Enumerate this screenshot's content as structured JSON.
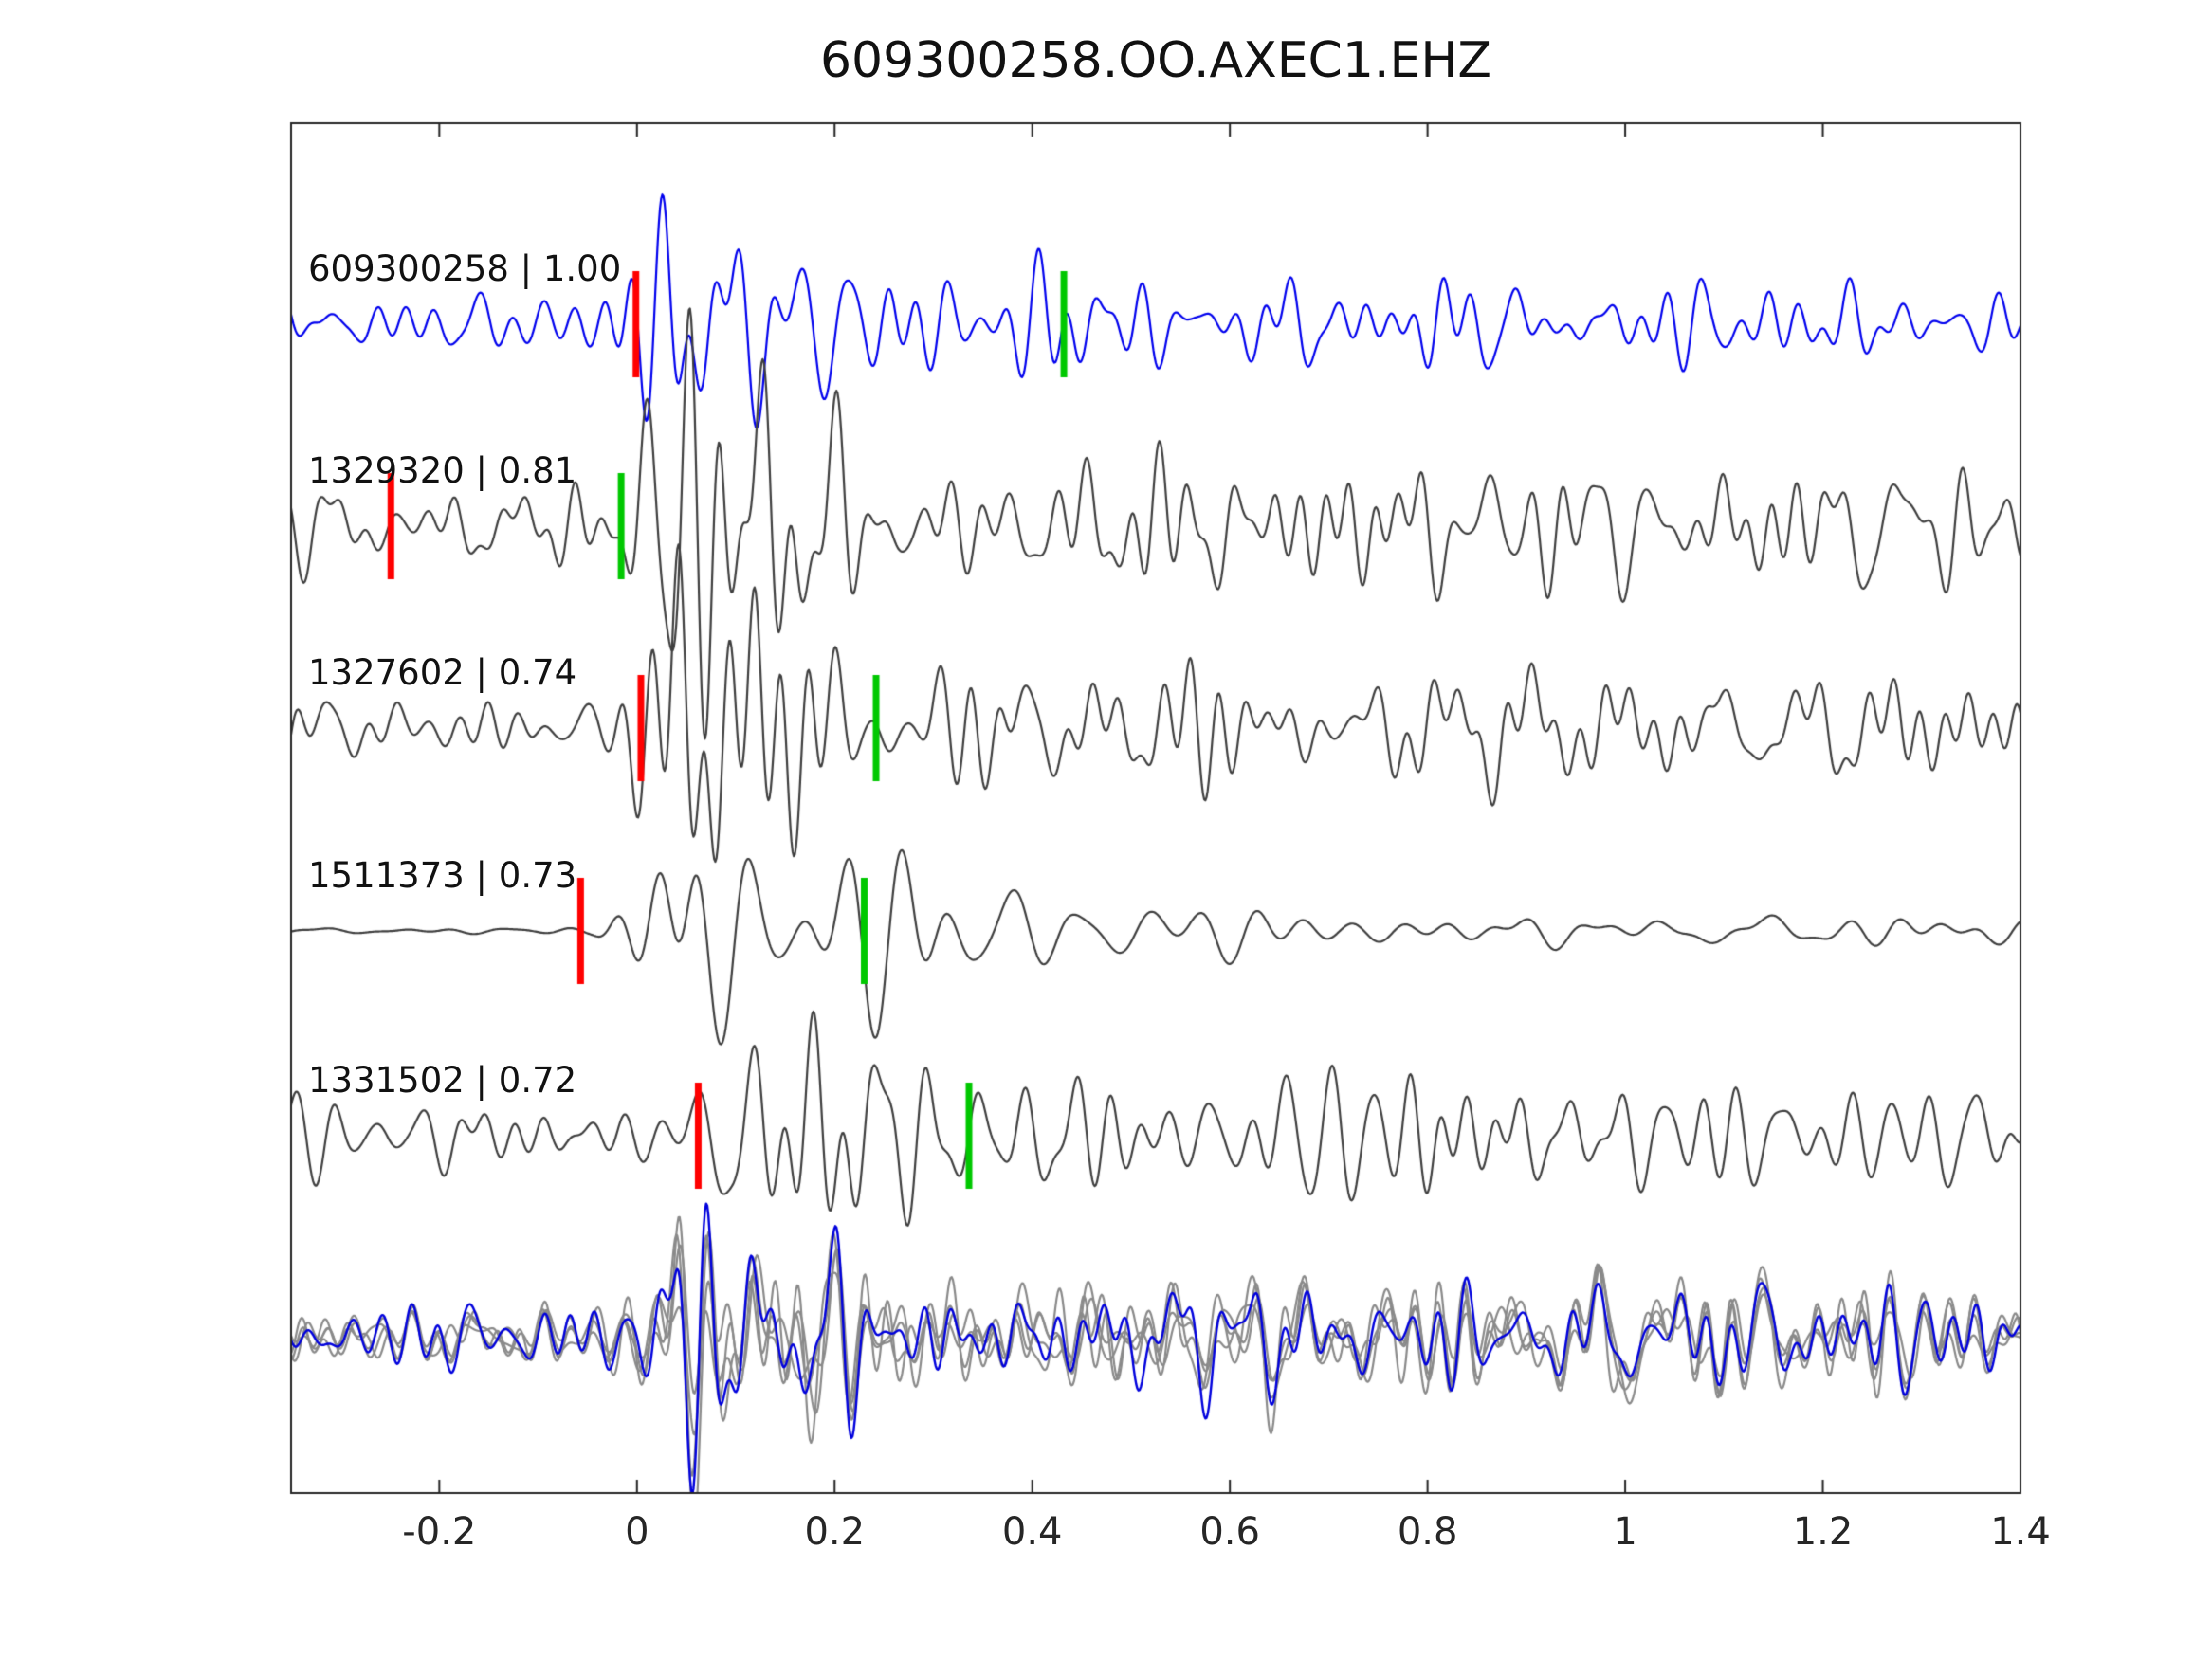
{
  "title": "609300258.OO.AXEC1.EHZ",
  "chart_data": {
    "type": "line",
    "title": "609300258.OO.AXEC1.EHZ",
    "xlabel": "",
    "ylabel": "",
    "xlim": [
      -0.35,
      1.4
    ],
    "xticks": [
      -0.2,
      0,
      0.2,
      0.4,
      0.6,
      0.8,
      1,
      1.2,
      1.4
    ],
    "xtick_labels": [
      "-0.2",
      "0",
      "0.2",
      "0.4",
      "0.6",
      "0.8",
      "1",
      "1.2",
      "1.4"
    ],
    "grid": false,
    "legend": "none",
    "description": "Stacked seismogram traces: template event (blue) compared with four matched detections (dark gray), red tick = pick time, green tick = secondary pick; bottom row overlays all aligned traces (gray) with stack (blue).",
    "marker_colors": {
      "red_pick": "#ff0000",
      "green_pick": "#00c800"
    },
    "axis_color": "#262626",
    "traces": [
      {
        "event_id": "609300258",
        "label": "609300258 | 1.00",
        "similarity": 1.0,
        "color": "#0000ee",
        "pick_red": -0.001,
        "pick_green": 0.432,
        "synth": {
          "seed": 17,
          "pre": 0.22,
          "burst": 1.0,
          "tau": 0.22,
          "coda": 0.24,
          "flo": 9,
          "fhi": 46,
          "t0": 0.0,
          "amp": 80
        }
      },
      {
        "event_id": "1329320",
        "label": "1329320 | 0.81",
        "similarity": 0.81,
        "color": "#3f3f3f",
        "pick_red": -0.249,
        "pick_green": -0.016,
        "synth": {
          "seed": 23,
          "pre": 0.34,
          "burst": 0.95,
          "tau": 0.26,
          "coda": 0.32,
          "flo": 9,
          "fhi": 44,
          "t0": 0.0,
          "amp": 84
        }
      },
      {
        "event_id": "1327602",
        "label": "1327602 | 0.74",
        "similarity": 0.74,
        "color": "#3f3f3f",
        "pick_red": 0.004,
        "pick_green": 0.242,
        "synth": {
          "seed": 31,
          "pre": 0.27,
          "burst": 1.0,
          "tau": 0.22,
          "coda": 0.26,
          "flo": 9,
          "fhi": 42,
          "t0": 0.0,
          "amp": 90
        }
      },
      {
        "event_id": "1511373",
        "label": "1511373 | 0.73",
        "similarity": 0.73,
        "color": "#3f3f3f",
        "pick_red": -0.057,
        "pick_green": 0.23,
        "synth": {
          "seed": 47,
          "pre": 0.03,
          "burst": 1.0,
          "tau": 0.3,
          "coda": 0.16,
          "flo": 6,
          "fhi": 26,
          "t0": 0.0,
          "amp": 95
        }
      },
      {
        "event_id": "1331502",
        "label": "1331502 | 0.72",
        "similarity": 0.72,
        "color": "#3f3f3f",
        "pick_red": 0.062,
        "pick_green": 0.336,
        "synth": {
          "seed": 59,
          "pre": 0.3,
          "burst": 0.95,
          "tau": 0.2,
          "coda": 0.28,
          "flo": 9,
          "fhi": 44,
          "t0": 0.05,
          "amp": 84
        }
      }
    ],
    "stack": {
      "gray_color": "#8a8a8a",
      "blue_color": "#0000dd",
      "base_synth": {
        "seed": 101,
        "pre": 0.3,
        "burst": 1.0,
        "tau": 0.2,
        "coda": 0.3,
        "flo": 9,
        "fhi": 46,
        "t0": 0.01,
        "amp": 74
      },
      "gray_seeds": [
        102,
        103,
        104,
        105
      ],
      "gray_amps": [
        88,
        72,
        70,
        80
      ],
      "blue_seed": 106,
      "blue_amp": 74
    }
  }
}
